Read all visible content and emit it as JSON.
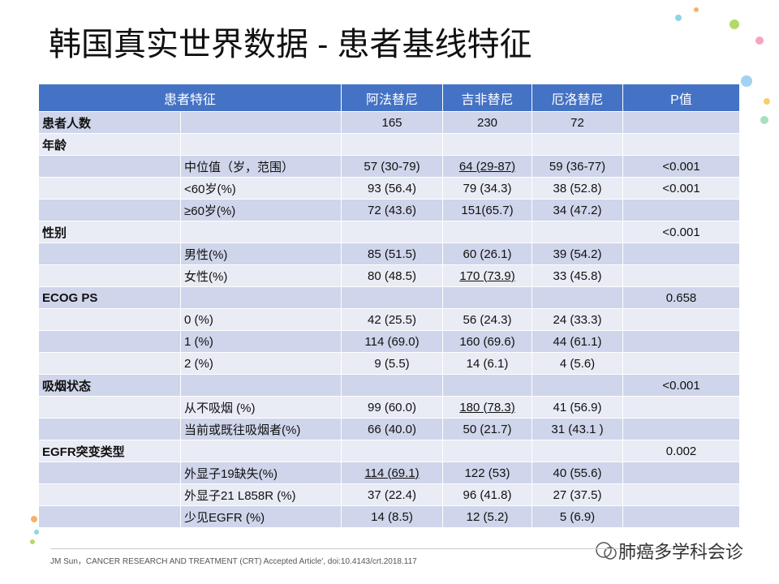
{
  "header": {
    "title": "韩国真实世界数据 - 患者基线特征"
  },
  "table": {
    "columns": [
      "患者特征",
      "阿法替尼",
      "吉非替尼",
      "厄洛替尼",
      "P值"
    ],
    "rows": [
      [
        "患者人数",
        null,
        "165",
        "230",
        "72",
        null
      ],
      [
        "年龄",
        null,
        null,
        null,
        null,
        null
      ],
      [
        null,
        "中位值（岁，范围）",
        "57 (30-79)",
        {
          "text": "64 (29-87)",
          "underline": true
        },
        "59 (36-77)",
        "<0.001"
      ],
      [
        null,
        "<60岁(%)",
        "93 (56.4)",
        "79 (34.3)",
        "38 (52.8)",
        "<0.001"
      ],
      [
        null,
        "≥60岁(%)",
        "72 (43.6)",
        "151(65.7)",
        "34 (47.2)",
        null
      ],
      [
        "性别",
        null,
        null,
        null,
        null,
        "<0.001"
      ],
      [
        null,
        "男性(%)",
        "85 (51.5)",
        "60 (26.1)",
        "39 (54.2)",
        null
      ],
      [
        null,
        "女性(%)",
        "80 (48.5)",
        {
          "text": "170 (73.9)",
          "underline": true
        },
        "33 (45.8)",
        null
      ],
      [
        "ECOG PS",
        null,
        null,
        null,
        null,
        "0.658"
      ],
      [
        null,
        "0 (%)",
        "42 (25.5)",
        "56 (24.3)",
        "24 (33.3)",
        null
      ],
      [
        null,
        "1 (%)",
        "114 (69.0)",
        "160 (69.6)",
        "44 (61.1)",
        null
      ],
      [
        null,
        "2 (%)",
        "9 (5.5)",
        "14 (6.1)",
        "4 (5.6)",
        null
      ],
      [
        "吸烟状态",
        null,
        null,
        null,
        null,
        "<0.001"
      ],
      [
        null,
        "从不吸烟 (%)",
        "99 (60.0)",
        {
          "text": "180 (78.3)",
          "underline": true
        },
        "41 (56.9)",
        null
      ],
      [
        null,
        "当前或既往吸烟者(%)",
        "66 (40.0)",
        "50 (21.7)",
        "31 (43.1 )",
        null
      ],
      [
        "EGFR突变类型",
        null,
        null,
        null,
        null,
        "0.002"
      ],
      [
        null,
        "外显子19缺失(%)",
        {
          "text": "114 (69.1)",
          "underline": true
        },
        "122 (53)",
        "40 (55.6)",
        null
      ],
      [
        null,
        "外显子21 L858R (%)",
        "37 (22.4)",
        "96 (41.8)",
        "27 (37.5)",
        null
      ],
      [
        null,
        "少见EGFR (%)",
        "14 (8.5)",
        "12 (5.2)",
        "5 (6.9)",
        null
      ]
    ]
  },
  "footnote": "JM Sun，CANCER RESEARCH AND TREATMENT (CRT) Accepted Article', doi:10.4143/crt.2018.117",
  "watermark": "肺癌多学科会诊"
}
